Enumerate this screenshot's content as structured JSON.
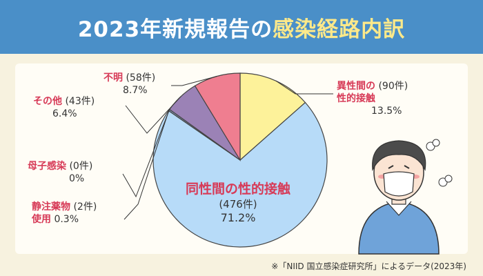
{
  "header": {
    "title_main": "2023年新規報告の",
    "title_highlight": "感染経路内訳"
  },
  "chart_data": {
    "type": "pie",
    "slices": [
      {
        "category": "異性間の性的接触",
        "line1": "異性間の",
        "line2": "性的接触",
        "count_label": "(90件)",
        "percent_label": "13.5%",
        "count": 90,
        "percent": 13.5,
        "color": "#fdf29a"
      },
      {
        "category": "同性間の性的接触",
        "count_label": "(476件)",
        "percent_label": "71.2%",
        "count": 476,
        "percent": 71.2,
        "color": "#b7dbf8"
      },
      {
        "category": "静注薬物使用",
        "line1": "静注薬物",
        "line2": "使用",
        "count_label": "(2件)",
        "percent_label": "0.3%",
        "count": 2,
        "percent": 0.3,
        "color": "#7c8fb0"
      },
      {
        "category": "母子感染",
        "count_label": "(0件)",
        "percent_label": "0%",
        "count": 0,
        "percent": 0,
        "color": "#cccccc"
      },
      {
        "category": "その他",
        "count_label": "(43件)",
        "percent_label": "6.4%",
        "count": 43,
        "percent": 6.4,
        "color": "#9b82b6"
      },
      {
        "category": "不明",
        "count_label": "(58件)",
        "percent_label": "8.7%",
        "count": 58,
        "percent": 8.7,
        "color": "#ef7e90"
      }
    ]
  },
  "source": "※「NIID 国立感染症研究所」によるデータ(2023年)",
  "colors": {
    "header_bg": "#4a8fc8",
    "title_highlight": "#fde98a",
    "category_text": "#d73a57"
  }
}
